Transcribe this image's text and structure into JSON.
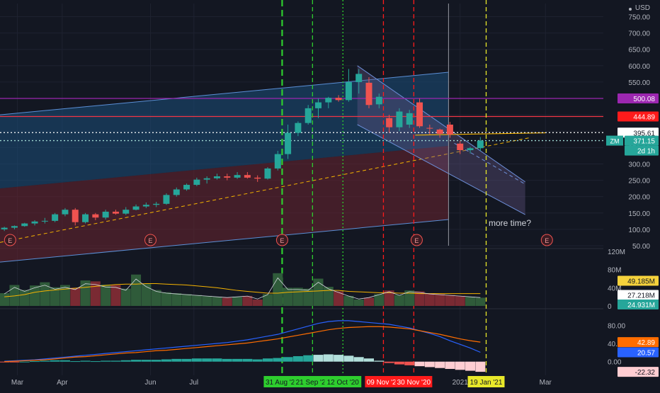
{
  "header": {
    "currency": "USD"
  },
  "annotation_text": "more time?",
  "colors": {
    "background": "#131722",
    "grid": "#1e2230",
    "up": "#26a69a",
    "down": "#ef5350",
    "purple_line": "#9c27b0",
    "red_line": "#f23645",
    "ma": "#f5b301",
    "channel_upper_fill": "#1c4f7a",
    "channel_lower_fill": "#6b2430",
    "green_marker": "#2ece2e",
    "red_marker": "#ff1b1b",
    "yellow_marker": "#e8e82a",
    "price_text": "#b2b5be",
    "badge_ticker": "#26a69a",
    "badge_red": "#ff1b1b",
    "badge_purple": "#9c27b0",
    "badge_white": "#ffffff"
  },
  "chart_data": [
    {
      "type": "candlestick",
      "pane": "price",
      "ticker": "ZM",
      "y_axis_ticks": [
        50,
        100,
        150,
        200,
        250,
        300,
        350,
        400,
        450,
        500,
        550,
        600,
        650,
        700,
        750
      ],
      "ylim": [
        50,
        790
      ],
      "x_axis_labels": [
        "Mar",
        "Apr",
        "Jun",
        "Jul",
        "2021",
        "Mar"
      ],
      "x_tick_dates": [
        "2020-03-01",
        "2020-04-01",
        "2020-06-01",
        "2020-07-01",
        "2021-01-01",
        "2021-03-01"
      ],
      "xlim": [
        "2020-02-18",
        "2021-04-10"
      ],
      "candles": [
        {
          "d": "2020-02-21",
          "o": 100,
          "h": 108,
          "l": 95,
          "c": 105
        },
        {
          "d": "2020-02-28",
          "o": 105,
          "h": 112,
          "l": 100,
          "c": 110
        },
        {
          "d": "2020-03-06",
          "o": 110,
          "h": 120,
          "l": 108,
          "c": 118
        },
        {
          "d": "2020-03-13",
          "o": 118,
          "h": 128,
          "l": 112,
          "c": 124
        },
        {
          "d": "2020-03-20",
          "o": 124,
          "h": 135,
          "l": 118,
          "c": 126
        },
        {
          "d": "2020-03-27",
          "o": 126,
          "h": 150,
          "l": 122,
          "c": 146
        },
        {
          "d": "2020-04-03",
          "o": 146,
          "h": 165,
          "l": 140,
          "c": 160
        },
        {
          "d": "2020-04-10",
          "o": 160,
          "h": 165,
          "l": 112,
          "c": 122
        },
        {
          "d": "2020-04-17",
          "o": 122,
          "h": 150,
          "l": 118,
          "c": 146
        },
        {
          "d": "2020-04-24",
          "o": 146,
          "h": 150,
          "l": 128,
          "c": 136
        },
        {
          "d": "2020-05-01",
          "o": 136,
          "h": 160,
          "l": 130,
          "c": 154
        },
        {
          "d": "2020-05-08",
          "o": 154,
          "h": 160,
          "l": 145,
          "c": 148
        },
        {
          "d": "2020-05-15",
          "o": 148,
          "h": 168,
          "l": 144,
          "c": 160
        },
        {
          "d": "2020-05-22",
          "o": 160,
          "h": 176,
          "l": 158,
          "c": 170
        },
        {
          "d": "2020-05-29",
          "o": 170,
          "h": 182,
          "l": 165,
          "c": 175
        },
        {
          "d": "2020-06-05",
          "o": 175,
          "h": 184,
          "l": 168,
          "c": 178
        },
        {
          "d": "2020-06-12",
          "o": 178,
          "h": 210,
          "l": 175,
          "c": 205
        },
        {
          "d": "2020-06-19",
          "o": 205,
          "h": 228,
          "l": 200,
          "c": 222
        },
        {
          "d": "2020-06-26",
          "o": 222,
          "h": 240,
          "l": 218,
          "c": 236
        },
        {
          "d": "2020-07-03",
          "o": 236,
          "h": 258,
          "l": 232,
          "c": 252
        },
        {
          "d": "2020-07-10",
          "o": 252,
          "h": 262,
          "l": 240,
          "c": 256
        },
        {
          "d": "2020-07-17",
          "o": 256,
          "h": 270,
          "l": 252,
          "c": 262
        },
        {
          "d": "2020-07-24",
          "o": 262,
          "h": 270,
          "l": 250,
          "c": 258
        },
        {
          "d": "2020-07-31",
          "o": 258,
          "h": 275,
          "l": 254,
          "c": 266
        },
        {
          "d": "2020-08-07",
          "o": 266,
          "h": 275,
          "l": 255,
          "c": 258
        },
        {
          "d": "2020-08-14",
          "o": 258,
          "h": 265,
          "l": 245,
          "c": 255
        },
        {
          "d": "2020-08-21",
          "o": 255,
          "h": 290,
          "l": 252,
          "c": 286
        },
        {
          "d": "2020-08-28",
          "o": 286,
          "h": 340,
          "l": 280,
          "c": 330
        },
        {
          "d": "2020-09-04",
          "o": 330,
          "h": 420,
          "l": 315,
          "c": 395
        },
        {
          "d": "2020-09-11",
          "o": 395,
          "h": 430,
          "l": 385,
          "c": 425
        },
        {
          "d": "2020-09-18",
          "o": 425,
          "h": 480,
          "l": 420,
          "c": 470
        },
        {
          "d": "2020-09-25",
          "o": 470,
          "h": 500,
          "l": 440,
          "c": 488
        },
        {
          "d": "2020-10-02",
          "o": 488,
          "h": 505,
          "l": 470,
          "c": 502
        },
        {
          "d": "2020-10-09",
          "o": 502,
          "h": 510,
          "l": 490,
          "c": 495
        },
        {
          "d": "2020-10-16",
          "o": 495,
          "h": 590,
          "l": 490,
          "c": 550
        },
        {
          "d": "2020-10-23",
          "o": 550,
          "h": 590,
          "l": 515,
          "c": 575
        },
        {
          "d": "2020-10-30",
          "o": 548,
          "h": 565,
          "l": 470,
          "c": 480
        },
        {
          "d": "2020-11-06",
          "o": 482,
          "h": 515,
          "l": 470,
          "c": 505
        },
        {
          "d": "2020-11-13",
          "o": 440,
          "h": 450,
          "l": 395,
          "c": 412
        },
        {
          "d": "2020-11-20",
          "o": 412,
          "h": 470,
          "l": 400,
          "c": 460
        },
        {
          "d": "2020-11-27",
          "o": 420,
          "h": 465,
          "l": 410,
          "c": 455
        },
        {
          "d": "2020-12-04",
          "o": 488,
          "h": 500,
          "l": 410,
          "c": 415
        },
        {
          "d": "2020-12-11",
          "o": 410,
          "h": 420,
          "l": 390,
          "c": 408
        },
        {
          "d": "2020-12-18",
          "o": 405,
          "h": 408,
          "l": 380,
          "c": 392
        },
        {
          "d": "2020-12-25",
          "o": 420,
          "h": 428,
          "l": 380,
          "c": 390
        },
        {
          "d": "2021-01-01",
          "o": 362,
          "h": 370,
          "l": 330,
          "c": 342
        },
        {
          "d": "2021-01-08",
          "o": 342,
          "h": 352,
          "l": 332,
          "c": 348
        },
        {
          "d": "2021-01-15",
          "o": 348,
          "h": 382,
          "l": 340,
          "c": 371.15
        }
      ],
      "lines": {
        "upper_channel": {
          "from": {
            "d": "2020-02-18",
            "v": 450
          },
          "to": {
            "d": "2020-12-24",
            "v": 580
          }
        },
        "mid_channel": {
          "from": {
            "d": "2020-02-18",
            "v": 225
          },
          "to": {
            "d": "2020-12-24",
            "v": 355
          }
        },
        "lower_channel": {
          "from": {
            "d": "2020-02-18",
            "v": 0
          },
          "to": {
            "d": "2020-12-24",
            "v": 130
          }
        },
        "mid_dashed": {
          "from": {
            "d": "2020-02-18",
            "v": 60
          },
          "to": {
            "d": "2021-02-18",
            "v": 380
          }
        },
        "down_upper": {
          "from": {
            "d": "2020-10-22",
            "v": 600
          },
          "to": {
            "d": "2021-02-15",
            "v": 245
          }
        },
        "down_lower": {
          "from": {
            "d": "2020-10-22",
            "v": 420
          },
          "to": {
            "d": "2021-02-15",
            "v": 145
          }
        },
        "down_mid_dashed": {
          "from": {
            "d": "2020-12-28",
            "v": 363
          },
          "to": {
            "d": "2021-02-15",
            "v": 238
          }
        },
        "sma_short": {
          "from": {
            "d": "2020-12-01",
            "v": 388
          },
          "to": {
            "d": "2021-03-01",
            "v": 395
          }
        }
      },
      "horizontal_levels": [
        {
          "value": 500.08,
          "label": "500.08",
          "style": "solid",
          "color": "purple"
        },
        {
          "value": 444.89,
          "label": "444.89",
          "style": "solid",
          "color": "red"
        },
        {
          "value": 395.61,
          "label": "395.61",
          "style": "dotted",
          "color": "white"
        },
        {
          "value": 371.15,
          "label": "371.15",
          "style": "dotted",
          "color": "ticker"
        }
      ],
      "countdown": "2d 1h",
      "earnings_markers": [
        {
          "d": "2020-02-25",
          "label": "E"
        },
        {
          "d": "2020-06-01",
          "label": "E"
        },
        {
          "d": "2020-08-31",
          "label": "E"
        },
        {
          "d": "2020-12-02",
          "label": "E"
        },
        {
          "d": "2021-03-02",
          "label": "E"
        }
      ],
      "vertical_markers": [
        {
          "d": "2020-08-31",
          "label": "31 Aug '20",
          "color": "green",
          "style": "long-dash"
        },
        {
          "d": "2020-09-21",
          "label": "21 Sep '20",
          "color": "green",
          "style": "dash"
        },
        {
          "d": "2020-10-12",
          "label": "12 Oct '20",
          "color": "green",
          "style": "dotted"
        },
        {
          "d": "2020-11-09",
          "label": "09 Nov '20",
          "color": "red",
          "style": "dash"
        },
        {
          "d": "2020-11-30",
          "label": "30 Nov '20",
          "color": "red",
          "style": "dash"
        },
        {
          "d": "2021-01-19",
          "label": "19 Jan '21",
          "color": "yellow",
          "style": "dash"
        }
      ]
    },
    {
      "type": "bar",
      "pane": "volume",
      "y_axis_ticks": [
        0,
        40,
        80,
        120
      ],
      "tick_labels": [
        "0",
        "40M",
        "80M",
        "120M"
      ],
      "ylim": [
        0,
        120
      ],
      "units": "M",
      "values": [
        28,
        46,
        35,
        45,
        52,
        41,
        46,
        40,
        56,
        54,
        47,
        46,
        38,
        69,
        48,
        35,
        30,
        28,
        26,
        24,
        22,
        20,
        18,
        20,
        22,
        14,
        26,
        72,
        40,
        40,
        38,
        60,
        42,
        32,
        22,
        14,
        18,
        26,
        34,
        24,
        34,
        32,
        28,
        26,
        24,
        22,
        20,
        18
      ],
      "ma_value_label": "49.185M",
      "value_label_2": "27.218M",
      "value_label_3": "24.931M",
      "ma_line": [
        20,
        22,
        25,
        30,
        33,
        35,
        37,
        39,
        41,
        43,
        45,
        47,
        48,
        48,
        49,
        49,
        48,
        47,
        46,
        44,
        42,
        40,
        37,
        34,
        32,
        30,
        28,
        28,
        30,
        31,
        32,
        33,
        34,
        34,
        32,
        31,
        30,
        29,
        29,
        28,
        28,
        27,
        27,
        27,
        27,
        27,
        27,
        27
      ]
    },
    {
      "type": "histogram+line",
      "pane": "macd",
      "y_axis_ticks": [
        0,
        40,
        80
      ],
      "tick_labels": [
        "0.00",
        "40.00",
        "80.00"
      ],
      "ylim": [
        -30,
        110
      ],
      "value_labels": [
        "42.89",
        "20.57",
        "-22.32"
      ],
      "histogram": [
        -1,
        -1,
        0,
        1,
        2,
        3,
        3,
        1,
        2,
        1,
        2,
        2,
        3,
        4,
        4,
        4,
        5,
        6,
        6,
        7,
        7,
        7,
        6,
        6,
        6,
        5,
        7,
        8,
        10,
        12,
        14,
        15,
        16,
        15,
        13,
        10,
        7,
        2,
        -3,
        -6,
        -8,
        -10,
        -12,
        -14,
        -16,
        -18,
        -20,
        -22.32
      ],
      "macd_line": [
        1,
        2,
        3,
        4,
        6,
        8,
        10,
        12,
        14,
        16,
        18,
        20,
        22,
        24,
        26,
        28,
        30,
        32,
        34,
        36,
        38,
        40,
        42,
        45,
        48,
        52,
        56,
        60,
        66,
        72,
        78,
        84,
        88,
        90,
        90,
        88,
        86,
        84,
        82,
        78,
        74,
        68,
        62,
        55,
        46,
        38,
        30,
        20.57
      ],
      "signal_line": [
        0,
        1,
        2,
        3,
        4,
        6,
        8,
        10,
        11,
        13,
        15,
        17,
        19,
        20,
        22,
        24,
        25,
        27,
        29,
        31,
        33,
        35,
        37,
        39,
        41,
        44,
        47,
        50,
        54,
        58,
        62,
        66,
        70,
        73,
        75,
        76,
        77,
        77,
        76,
        74,
        72,
        68,
        64,
        60,
        55,
        50,
        46,
        42.89
      ]
    }
  ]
}
